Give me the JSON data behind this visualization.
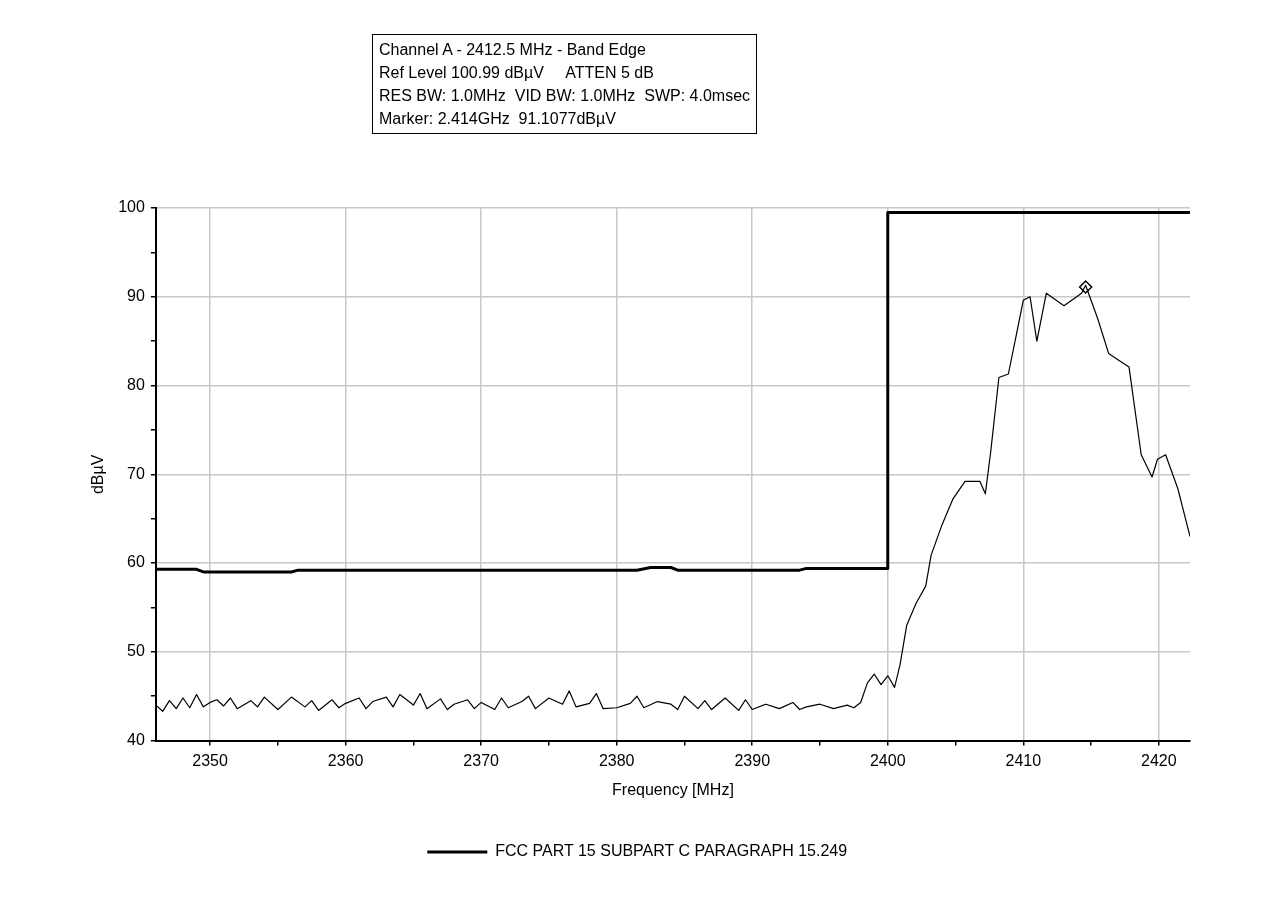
{
  "chart_data": {
    "type": "line",
    "title": "Channel A - 2412.5 MHz - Band Edge",
    "annotations": [
      "Ref Level 100.99 dBµV     ATTEN 5 dB",
      "RES BW: 1.0MHz  VID BW: 1.0MHz  SWP: 4.0msec",
      "Marker: 2.414GHz  91.1077dBµV"
    ],
    "xlabel": "Frequency [MHz]",
    "ylabel": "dBµV",
    "xlim": [
      2346,
      2422.3
    ],
    "ylim": [
      40,
      100
    ],
    "xticks": [
      2350,
      {
        "value": 2355,
        "label": null
      },
      2360,
      {
        "value": 2365,
        "label": null
      },
      2370,
      {
        "value": 2375,
        "label": null
      },
      2380,
      {
        "value": 2385,
        "label": null
      },
      2390,
      {
        "value": 2395,
        "label": null
      },
      2400,
      {
        "value": 2405,
        "label": null
      },
      2410,
      {
        "value": 2415,
        "label": null
      },
      2420
    ],
    "yticks": [
      40,
      {
        "value": 45,
        "label": null
      },
      50,
      {
        "value": 55,
        "label": null
      },
      60,
      {
        "value": 65,
        "label": null
      },
      70,
      {
        "value": 75,
        "label": null
      },
      80,
      {
        "value": 85,
        "label": null
      },
      90,
      {
        "value": 95,
        "label": null
      },
      100
    ],
    "grid": true,
    "legend": "bottom",
    "line_style": "solid",
    "series": [
      {
        "name": "FCC PART 15 SUBPART C PARAGRAPH 15.249",
        "color": "#000000",
        "x": [
          2346,
          2349,
          2349.5,
          2356,
          2356.5,
          2381.5,
          2382.5,
          2384,
          2384.5,
          2393.5,
          2394,
          2400,
          2400,
          2422.3
        ],
        "values": [
          59.3,
          59.3,
          59,
          59,
          59.2,
          59.2,
          59.5,
          59.5,
          59.2,
          59.2,
          59.4,
          59.4,
          99.5,
          99.5
        ]
      },
      {
        "color": "#000000",
        "x": [
          2346,
          2346.5,
          2347,
          2347.5,
          2348,
          2348.5,
          2349,
          2349.5,
          2350,
          2350.5,
          2351,
          2351.5,
          2352,
          2353,
          2353.5,
          2354,
          2355,
          2355.5,
          2356,
          2357,
          2357.5,
          2358,
          2359,
          2359.5,
          2360,
          2361,
          2361.5,
          2362,
          2363,
          2363.5,
          2364,
          2365,
          2365.5,
          2366,
          2367,
          2367.5,
          2368,
          2369,
          2369.5,
          2370,
          2371,
          2371.5,
          2372,
          2373,
          2373.5,
          2374,
          2375,
          2376,
          2376.5,
          2377,
          2378,
          2378.5,
          2379,
          2380,
          2381,
          2381.5,
          2382,
          2383,
          2384,
          2384.5,
          2385,
          2386,
          2386.5,
          2387,
          2388,
          2389,
          2389.5,
          2390,
          2391,
          2392,
          2393,
          2393.5,
          2394,
          2395,
          2396,
          2397,
          2397.5,
          2398,
          2398.5,
          2399,
          2399.5,
          2400,
          2400.2,
          2400.5,
          2400.9,
          2401.4,
          2402.1,
          2402.8,
          2403.2,
          2404,
          2404.8,
          2405.7,
          2406.8,
          2407.2,
          2407.6,
          2408.2,
          2408.9,
          2410,
          2410.5,
          2411,
          2411.7,
          2413,
          2414.3,
          2414.6,
          2415.5,
          2416.3,
          2416.9,
          2417.8,
          2418.7,
          2419.5,
          2419.9,
          2420.5,
          2421.4,
          2422.3
        ],
        "values": [
          44,
          43.3,
          44.5,
          43.6,
          44.8,
          43.7,
          45.2,
          43.8,
          44.3,
          44.6,
          43.9,
          44.8,
          43.6,
          44.5,
          43.8,
          44.9,
          43.5,
          44.2,
          44.9,
          43.8,
          44.5,
          43.4,
          44.6,
          43.7,
          44.2,
          44.8,
          43.6,
          44.4,
          44.9,
          43.8,
          45.2,
          44,
          45.3,
          43.6,
          44.7,
          43.5,
          44.1,
          44.6,
          43.6,
          44.3,
          43.5,
          44.8,
          43.7,
          44.4,
          45,
          43.6,
          44.8,
          44.1,
          45.6,
          43.8,
          44.2,
          45.3,
          43.6,
          43.7,
          44.2,
          45,
          43.7,
          44.4,
          44.1,
          43.5,
          45,
          43.6,
          44.5,
          43.5,
          44.8,
          43.4,
          44.6,
          43.5,
          44.1,
          43.6,
          44.3,
          43.5,
          43.8,
          44.1,
          43.6,
          44,
          43.7,
          44.3,
          46.5,
          47.5,
          46.3,
          47.3,
          46.8,
          46,
          48.5,
          53,
          55.5,
          57.4,
          60.9,
          64.3,
          67.2,
          69.2,
          69.2,
          67.8,
          72.6,
          80.9,
          81.3,
          89.6,
          90,
          85,
          90.4,
          89,
          90.4,
          91.3,
          87.5,
          83.6,
          83,
          82.1,
          72.2,
          69.7,
          71.7,
          72.2,
          68.4,
          63
        ]
      },
      {
        "type": "scatter",
        "marker": "diamond",
        "color": "#000000",
        "x": [
          2414.6
        ],
        "values": [
          91.1
        ]
      }
    ]
  }
}
